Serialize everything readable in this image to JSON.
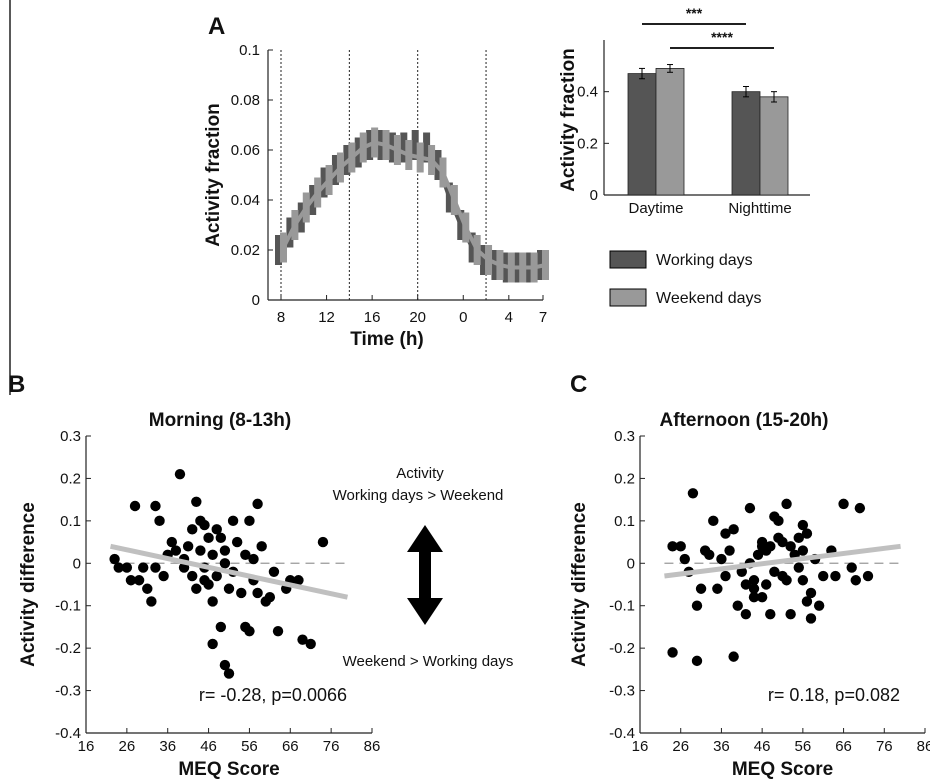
{
  "panel_labels": {
    "a": "A",
    "b": "B",
    "c": "C"
  },
  "legend": {
    "working": "Working days",
    "weekend": "Weekend days"
  },
  "colors": {
    "working": "#555555",
    "weekend": "#999999",
    "fit_line": "#c0c0c0",
    "points": "#000000"
  },
  "annotation": {
    "activity": "Activity",
    "upper": "Working days > Weekend",
    "lower": "Weekend > Working days",
    "arrow_icon": "double-arrow-vertical"
  },
  "chart_data": [
    {
      "type": "line",
      "xlabel": "Time (h)",
      "ylabel": "Activity fraction",
      "x_tick_labels": [
        "8",
        "12",
        "16",
        "20",
        "0",
        "4",
        "7"
      ],
      "x_tick_hours": [
        0,
        4,
        8,
        12,
        16,
        20,
        23
      ],
      "yticks": [
        0,
        0.02,
        0.04,
        0.06,
        0.08,
        0.1
      ],
      "ylim": [
        0,
        0.1
      ],
      "vlines_hours": [
        0,
        6,
        12,
        18
      ],
      "x_hours": [
        0,
        1,
        2,
        3,
        4,
        5,
        6,
        7,
        8,
        9,
        10,
        11,
        12,
        13,
        14,
        15,
        16,
        17,
        18,
        19,
        20,
        21,
        22,
        23
      ],
      "series": [
        {
          "name": "Working days",
          "values": [
            0.02,
            0.027,
            0.033,
            0.04,
            0.047,
            0.052,
            0.056,
            0.059,
            0.062,
            0.062,
            0.061,
            0.061,
            0.062,
            0.061,
            0.054,
            0.041,
            0.03,
            0.021,
            0.016,
            0.014,
            0.013,
            0.013,
            0.013,
            0.014
          ],
          "err": 0.006
        },
        {
          "name": "Weekend days",
          "values": [
            0.021,
            0.03,
            0.037,
            0.043,
            0.048,
            0.053,
            0.057,
            0.061,
            0.063,
            0.062,
            0.06,
            0.058,
            0.057,
            0.056,
            0.051,
            0.04,
            0.029,
            0.02,
            0.016,
            0.014,
            0.013,
            0.013,
            0.013,
            0.014
          ],
          "err": 0.006
        }
      ]
    },
    {
      "type": "bar",
      "ylabel": "Activity fraction",
      "categories": [
        "Daytime",
        "Nighttime"
      ],
      "yticks": [
        0,
        0.2,
        0.4
      ],
      "ylim": [
        0,
        0.6
      ],
      "series": [
        {
          "name": "Working days",
          "values": [
            0.47,
            0.4
          ],
          "err": [
            0.02,
            0.02
          ]
        },
        {
          "name": "Weekend days",
          "values": [
            0.49,
            0.38
          ],
          "err": [
            0.015,
            0.02
          ]
        }
      ],
      "significance": [
        "***",
        "****"
      ]
    },
    {
      "type": "scatter",
      "title": "Morning (8-13h)",
      "xlabel": "MEQ Score",
      "ylabel": "Activity difference",
      "xticks": [
        16,
        26,
        36,
        46,
        56,
        66,
        76,
        86
      ],
      "yticks": [
        -0.4,
        -0.3,
        -0.2,
        -0.1,
        0,
        0.1,
        0.2,
        0.3
      ],
      "xlim": [
        16,
        86
      ],
      "ylim": [
        -0.4,
        0.3
      ],
      "stat": "r= -0.28, p=0.0066",
      "fit": {
        "x": [
          22,
          80
        ],
        "y": [
          0.04,
          -0.08
        ]
      },
      "points": [
        [
          23,
          0.01
        ],
        [
          24,
          -0.01
        ],
        [
          26,
          -0.01
        ],
        [
          27,
          -0.04
        ],
        [
          28,
          0.135
        ],
        [
          29,
          -0.04
        ],
        [
          30,
          -0.01
        ],
        [
          31,
          -0.06
        ],
        [
          32,
          -0.09
        ],
        [
          33,
          0.135
        ],
        [
          33,
          -0.01
        ],
        [
          34,
          0.1
        ],
        [
          35,
          -0.03
        ],
        [
          36,
          0.02
        ],
        [
          37,
          0.05
        ],
        [
          38,
          0.03
        ],
        [
          39,
          0.21
        ],
        [
          40,
          0.01
        ],
        [
          40,
          -0.01
        ],
        [
          41,
          0.04
        ],
        [
          42,
          0.08
        ],
        [
          42,
          -0.03
        ],
        [
          43,
          0.145
        ],
        [
          43,
          -0.06
        ],
        [
          44,
          0.1
        ],
        [
          44,
          0.03
        ],
        [
          45,
          0.09
        ],
        [
          45,
          -0.01
        ],
        [
          46,
          0.06
        ],
        [
          46,
          -0.05
        ],
        [
          47,
          0.02
        ],
        [
          47,
          -0.09
        ],
        [
          48,
          0.08
        ],
        [
          48,
          -0.03
        ],
        [
          49,
          0.06
        ],
        [
          49,
          -0.15
        ],
        [
          50,
          0.0
        ],
        [
          50,
          -0.24
        ],
        [
          51,
          -0.06
        ],
        [
          51,
          -0.26
        ],
        [
          52,
          0.1
        ],
        [
          52,
          -0.02
        ],
        [
          53,
          0.05
        ],
        [
          54,
          -0.07
        ],
        [
          55,
          0.02
        ],
        [
          55,
          -0.15
        ],
        [
          56,
          0.1
        ],
        [
          56,
          -0.16
        ],
        [
          57,
          0.01
        ],
        [
          57,
          -0.04
        ],
        [
          58,
          0.14
        ],
        [
          58,
          -0.07
        ],
        [
          59,
          0.04
        ],
        [
          60,
          -0.09
        ],
        [
          61,
          -0.08
        ],
        [
          62,
          -0.02
        ],
        [
          63,
          -0.16
        ],
        [
          65,
          -0.06
        ],
        [
          66,
          -0.04
        ],
        [
          68,
          -0.04
        ],
        [
          69,
          -0.18
        ],
        [
          71,
          -0.19
        ],
        [
          74,
          0.05
        ],
        [
          47,
          -0.19
        ],
        [
          45,
          -0.04
        ],
        [
          50,
          0.03
        ]
      ]
    },
    {
      "type": "scatter",
      "title": "Afternoon (15-20h)",
      "xlabel": "MEQ Score",
      "ylabel": "Activity difference",
      "xticks": [
        16,
        26,
        36,
        46,
        56,
        66,
        76,
        86
      ],
      "yticks": [
        -0.4,
        -0.3,
        -0.2,
        -0.1,
        0,
        0.1,
        0.2,
        0.3
      ],
      "xlim": [
        16,
        86
      ],
      "ylim": [
        -0.4,
        0.3
      ],
      "stat": "r= 0.18, p=0.082",
      "fit": {
        "x": [
          22,
          80
        ],
        "y": [
          -0.03,
          0.04
        ]
      },
      "points": [
        [
          24,
          0.04
        ],
        [
          24,
          -0.21
        ],
        [
          26,
          0.04
        ],
        [
          27,
          0.01
        ],
        [
          28,
          -0.02
        ],
        [
          29,
          0.165
        ],
        [
          30,
          -0.1
        ],
        [
          30,
          -0.23
        ],
        [
          31,
          -0.06
        ],
        [
          32,
          0.03
        ],
        [
          33,
          0.02
        ],
        [
          34,
          0.1
        ],
        [
          35,
          -0.06
        ],
        [
          36,
          0.01
        ],
        [
          37,
          0.07
        ],
        [
          37,
          -0.03
        ],
        [
          38,
          0.03
        ],
        [
          39,
          0.08
        ],
        [
          39,
          -0.22
        ],
        [
          40,
          -0.1
        ],
        [
          41,
          -0.02
        ],
        [
          42,
          -0.05
        ],
        [
          42,
          -0.12
        ],
        [
          43,
          0.13
        ],
        [
          43,
          0.0
        ],
        [
          44,
          -0.04
        ],
        [
          44,
          -0.06
        ],
        [
          45,
          0.02
        ],
        [
          46,
          0.05
        ],
        [
          46,
          -0.08
        ],
        [
          47,
          0.03
        ],
        [
          47,
          -0.05
        ],
        [
          48,
          0.04
        ],
        [
          48,
          -0.12
        ],
        [
          49,
          0.11
        ],
        [
          49,
          -0.02
        ],
        [
          50,
          0.1
        ],
        [
          50,
          0.06
        ],
        [
          51,
          0.05
        ],
        [
          51,
          -0.03
        ],
        [
          52,
          0.14
        ],
        [
          52,
          -0.04
        ],
        [
          53,
          0.04
        ],
        [
          53,
          -0.12
        ],
        [
          54,
          0.02
        ],
        [
          55,
          0.06
        ],
        [
          55,
          -0.01
        ],
        [
          56,
          0.03
        ],
        [
          56,
          -0.04
        ],
        [
          57,
          0.07
        ],
        [
          57,
          -0.09
        ],
        [
          58,
          -0.07
        ],
        [
          58,
          -0.13
        ],
        [
          59,
          0.01
        ],
        [
          60,
          -0.1
        ],
        [
          61,
          -0.03
        ],
        [
          63,
          0.03
        ],
        [
          64,
          -0.03
        ],
        [
          66,
          0.14
        ],
        [
          68,
          -0.01
        ],
        [
          69,
          -0.04
        ],
        [
          70,
          0.13
        ],
        [
          72,
          -0.03
        ],
        [
          56,
          0.09
        ],
        [
          46,
          0.04
        ],
        [
          44,
          -0.08
        ]
      ]
    }
  ]
}
